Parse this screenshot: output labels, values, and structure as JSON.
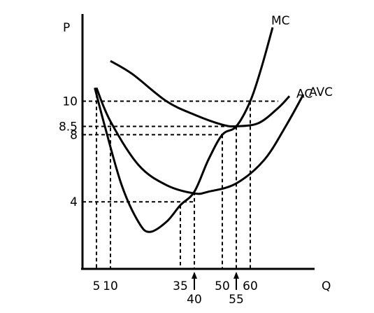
{
  "chart_data": {
    "type": "line",
    "title": "",
    "xlabel": "Q",
    "ylabel": "P",
    "x_ticks": [
      {
        "value": 5,
        "label": "5",
        "row": 1
      },
      {
        "value": 10,
        "label": "10",
        "row": 1
      },
      {
        "value": 35,
        "label": "35",
        "row": 1
      },
      {
        "value": 40,
        "label": "40",
        "row": 2,
        "arrow": true
      },
      {
        "value": 50,
        "label": "50",
        "row": 1
      },
      {
        "value": 55,
        "label": "55",
        "row": 2,
        "arrow": true
      },
      {
        "value": 60,
        "label": "60",
        "row": 1
      }
    ],
    "y_ticks": [
      {
        "value": 10,
        "label": "10"
      },
      {
        "value": 8.5,
        "label": "8.5"
      },
      {
        "value": 8,
        "label": "8"
      },
      {
        "value": 4,
        "label": "4"
      }
    ],
    "series": [
      {
        "name": "MC",
        "points": [
          [
            4.4,
            10.8
          ],
          [
            8,
            8.5
          ],
          [
            14,
            5
          ],
          [
            20,
            2.8
          ],
          [
            24,
            2.2
          ],
          [
            30,
            2.8
          ],
          [
            35,
            3.8
          ],
          [
            40,
            4.6
          ],
          [
            45,
            6.5
          ],
          [
            50,
            8.0
          ],
          [
            55,
            8.5
          ],
          [
            60,
            10.0
          ],
          [
            64,
            12.0
          ],
          [
            68,
            14.4
          ]
        ]
      },
      {
        "name": "AC",
        "points": [
          [
            10,
            12.4
          ],
          [
            18,
            11.6
          ],
          [
            30,
            10.0
          ],
          [
            40,
            9.2
          ],
          [
            50,
            8.6
          ],
          [
            55,
            8.5
          ],
          [
            63,
            8.7
          ],
          [
            70,
            9.6
          ],
          [
            74,
            10.3
          ]
        ]
      },
      {
        "name": "AVC",
        "points": [
          [
            5,
            10.8
          ],
          [
            10,
            8.8
          ],
          [
            20,
            6.2
          ],
          [
            30,
            5.0
          ],
          [
            40,
            4.5
          ],
          [
            45,
            4.6
          ],
          [
            55,
            5.1
          ],
          [
            65,
            6.5
          ],
          [
            73,
            8.6
          ],
          [
            79,
            10.4
          ]
        ]
      }
    ],
    "guides": {
      "horizontal": [
        {
          "y": 10,
          "x_to": 70
        },
        {
          "y": 8.5,
          "x_to": 55
        },
        {
          "y": 8,
          "x_to": 50
        },
        {
          "y": 4,
          "x_to": 40
        }
      ],
      "vertical": [
        5,
        10,
        35,
        40,
        50,
        55,
        60
      ]
    },
    "xlim": [
      0,
      80
    ],
    "ylim": [
      0,
      15.2
    ],
    "grid": false,
    "legend": "none"
  }
}
